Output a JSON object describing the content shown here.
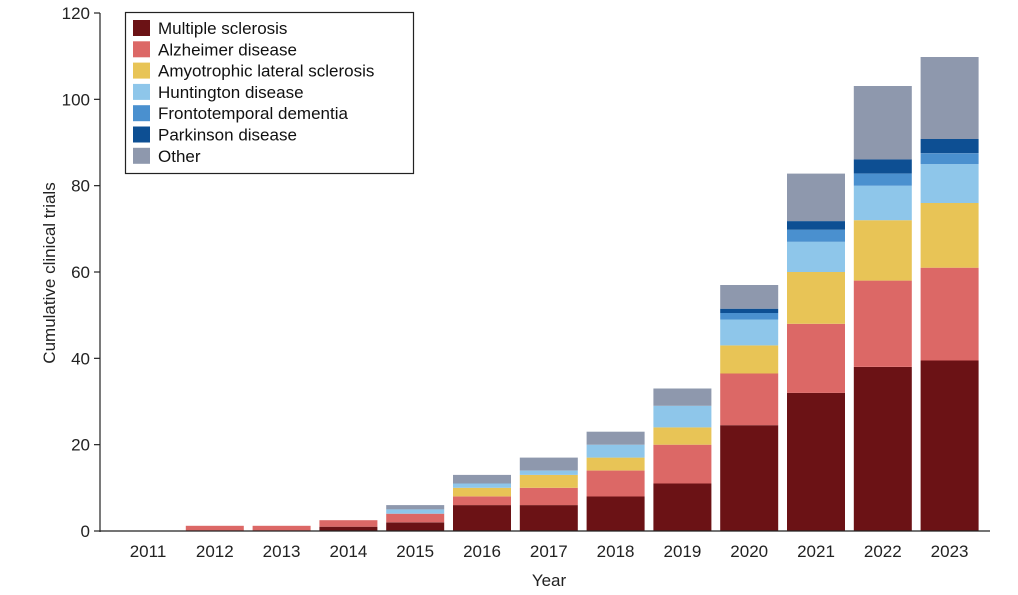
{
  "chart_data": {
    "type": "bar",
    "stacked": true,
    "title": "",
    "xlabel": "Year",
    "ylabel": "Cumulative clinical trials",
    "ylim": [
      0,
      120
    ],
    "yticks": [
      0,
      20,
      40,
      60,
      80,
      100,
      120
    ],
    "grid": false,
    "legend_position": "top-left",
    "categories": [
      "2011",
      "2012",
      "2013",
      "2014",
      "2015",
      "2016",
      "2017",
      "2018",
      "2019",
      "2020",
      "2021",
      "2022",
      "2023"
    ],
    "series": [
      {
        "name": "Multiple sclerosis",
        "color": "#6b1215",
        "values": [
          0,
          0,
          0,
          1,
          2,
          6,
          6,
          8,
          11,
          24.5,
          32,
          38,
          39.5
        ]
      },
      {
        "name": "Alzheimer disease",
        "color": "#dc6866",
        "values": [
          0,
          1.2,
          1.2,
          1.5,
          2,
          2,
          4,
          6,
          9,
          12,
          16,
          20,
          21.5
        ]
      },
      {
        "name": "Amyotrophic lateral sclerosis",
        "color": "#e8c456",
        "values": [
          0,
          0,
          0,
          0,
          0,
          2,
          3,
          3,
          4,
          6.5,
          12,
          14,
          15
        ]
      },
      {
        "name": "Huntington disease",
        "color": "#8ec6ea",
        "values": [
          0,
          0,
          0,
          0,
          1,
          1,
          1,
          3,
          5,
          6,
          7,
          8,
          9
        ]
      },
      {
        "name": "Frontotemporal dementia",
        "color": "#4a90cf",
        "values": [
          0,
          0,
          0,
          0,
          0,
          0,
          0,
          0,
          0,
          1.5,
          2.8,
          2.8,
          2.5
        ]
      },
      {
        "name": "Parkinson disease",
        "color": "#0d4f93",
        "values": [
          0,
          0,
          0,
          0,
          0,
          0,
          0,
          0,
          0,
          1,
          2,
          3.3,
          3.3
        ]
      },
      {
        "name": "Other",
        "color": "#8e98ad",
        "values": [
          0,
          0,
          0,
          0,
          1,
          2,
          3,
          3,
          4,
          5.5,
          11,
          17,
          19
        ]
      }
    ]
  }
}
